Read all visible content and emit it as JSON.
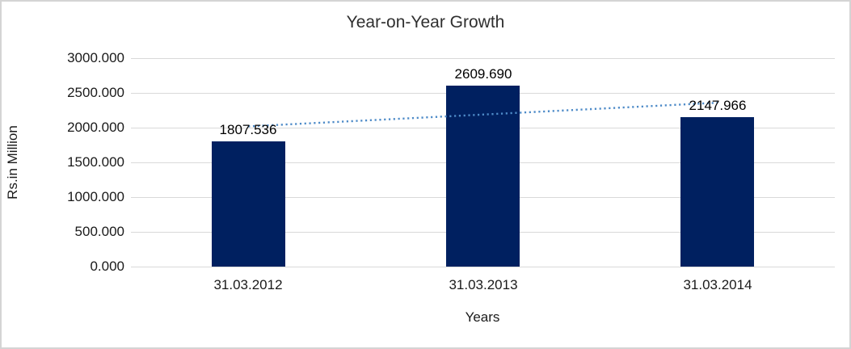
{
  "chart_data": {
    "type": "bar",
    "title": "Year-on-Year Growth",
    "categories": [
      "31.03.2012",
      "31.03.2013",
      "31.03.2014"
    ],
    "values": [
      1807.536,
      2609.69,
      2147.966
    ],
    "data_labels": [
      "1807.536",
      "2609.690",
      "2147.966"
    ],
    "xlabel": "Years",
    "ylabel": "Rs.in Million",
    "ylim": [
      0,
      3000
    ],
    "y_tick_step": 500,
    "y_ticks": [
      "0.000",
      "500.000",
      "1000.000",
      "1500.000",
      "2000.000",
      "2500.000",
      "3000.000"
    ],
    "grid": true,
    "legend": "none",
    "bar_color": "#002060",
    "trendline": {
      "type": "linear",
      "style": "dotted",
      "color": "#4E8BC8",
      "start_value": 2018.19,
      "end_value": 2358.61
    }
  }
}
